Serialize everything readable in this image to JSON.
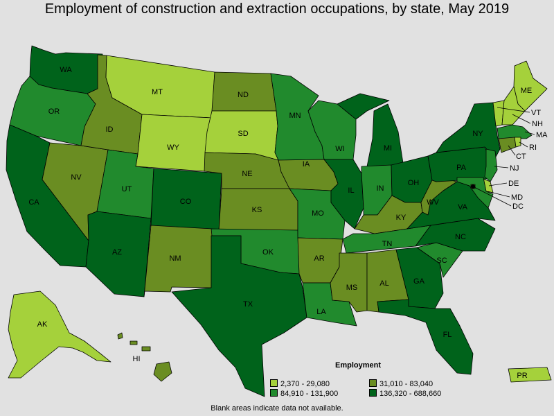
{
  "title": "Employment of construction and extraction occupations, by state, May 2019",
  "legend": {
    "title": "Employment",
    "classes": [
      {
        "label": "2,370 - 29,080",
        "color": "#a5d13b"
      },
      {
        "label": "31,010 - 83,040",
        "color": "#6a8d22"
      },
      {
        "label": "84,910 - 131,900",
        "color": "#218a2d"
      },
      {
        "label": "136,320 - 688,660",
        "color": "#00631b"
      }
    ]
  },
  "footnote": "Blank areas indicate data not available.",
  "states": {
    "WA": 3,
    "OR": 2,
    "CA": 3,
    "NV": 1,
    "ID": 1,
    "MT": 0,
    "WY": 0,
    "UT": 2,
    "AZ": 3,
    "CO": 3,
    "NM": 1,
    "ND": 1,
    "SD": 0,
    "NE": 1,
    "KS": 1,
    "OK": 2,
    "TX": 3,
    "MN": 2,
    "IA": 1,
    "MO": 2,
    "AR": 1,
    "LA": 2,
    "WI": 2,
    "IL": 3,
    "MI": 3,
    "IN": 2,
    "OH": 3,
    "KY": 1,
    "TN": 2,
    "MS": 1,
    "AL": 1,
    "GA": 3,
    "FL": 3,
    "SC": 2,
    "NC": 3,
    "VA": 3,
    "WV": 1,
    "PA": 3,
    "NY": 3,
    "ME": 0,
    "VT": 0,
    "NH": 0,
    "MA": 2,
    "CT": 1,
    "RI": 0,
    "NJ": 2,
    "DE": 0,
    "MD": 2,
    "DC": 1,
    "AK": 0,
    "HI": 1,
    "PR": 0
  }
}
